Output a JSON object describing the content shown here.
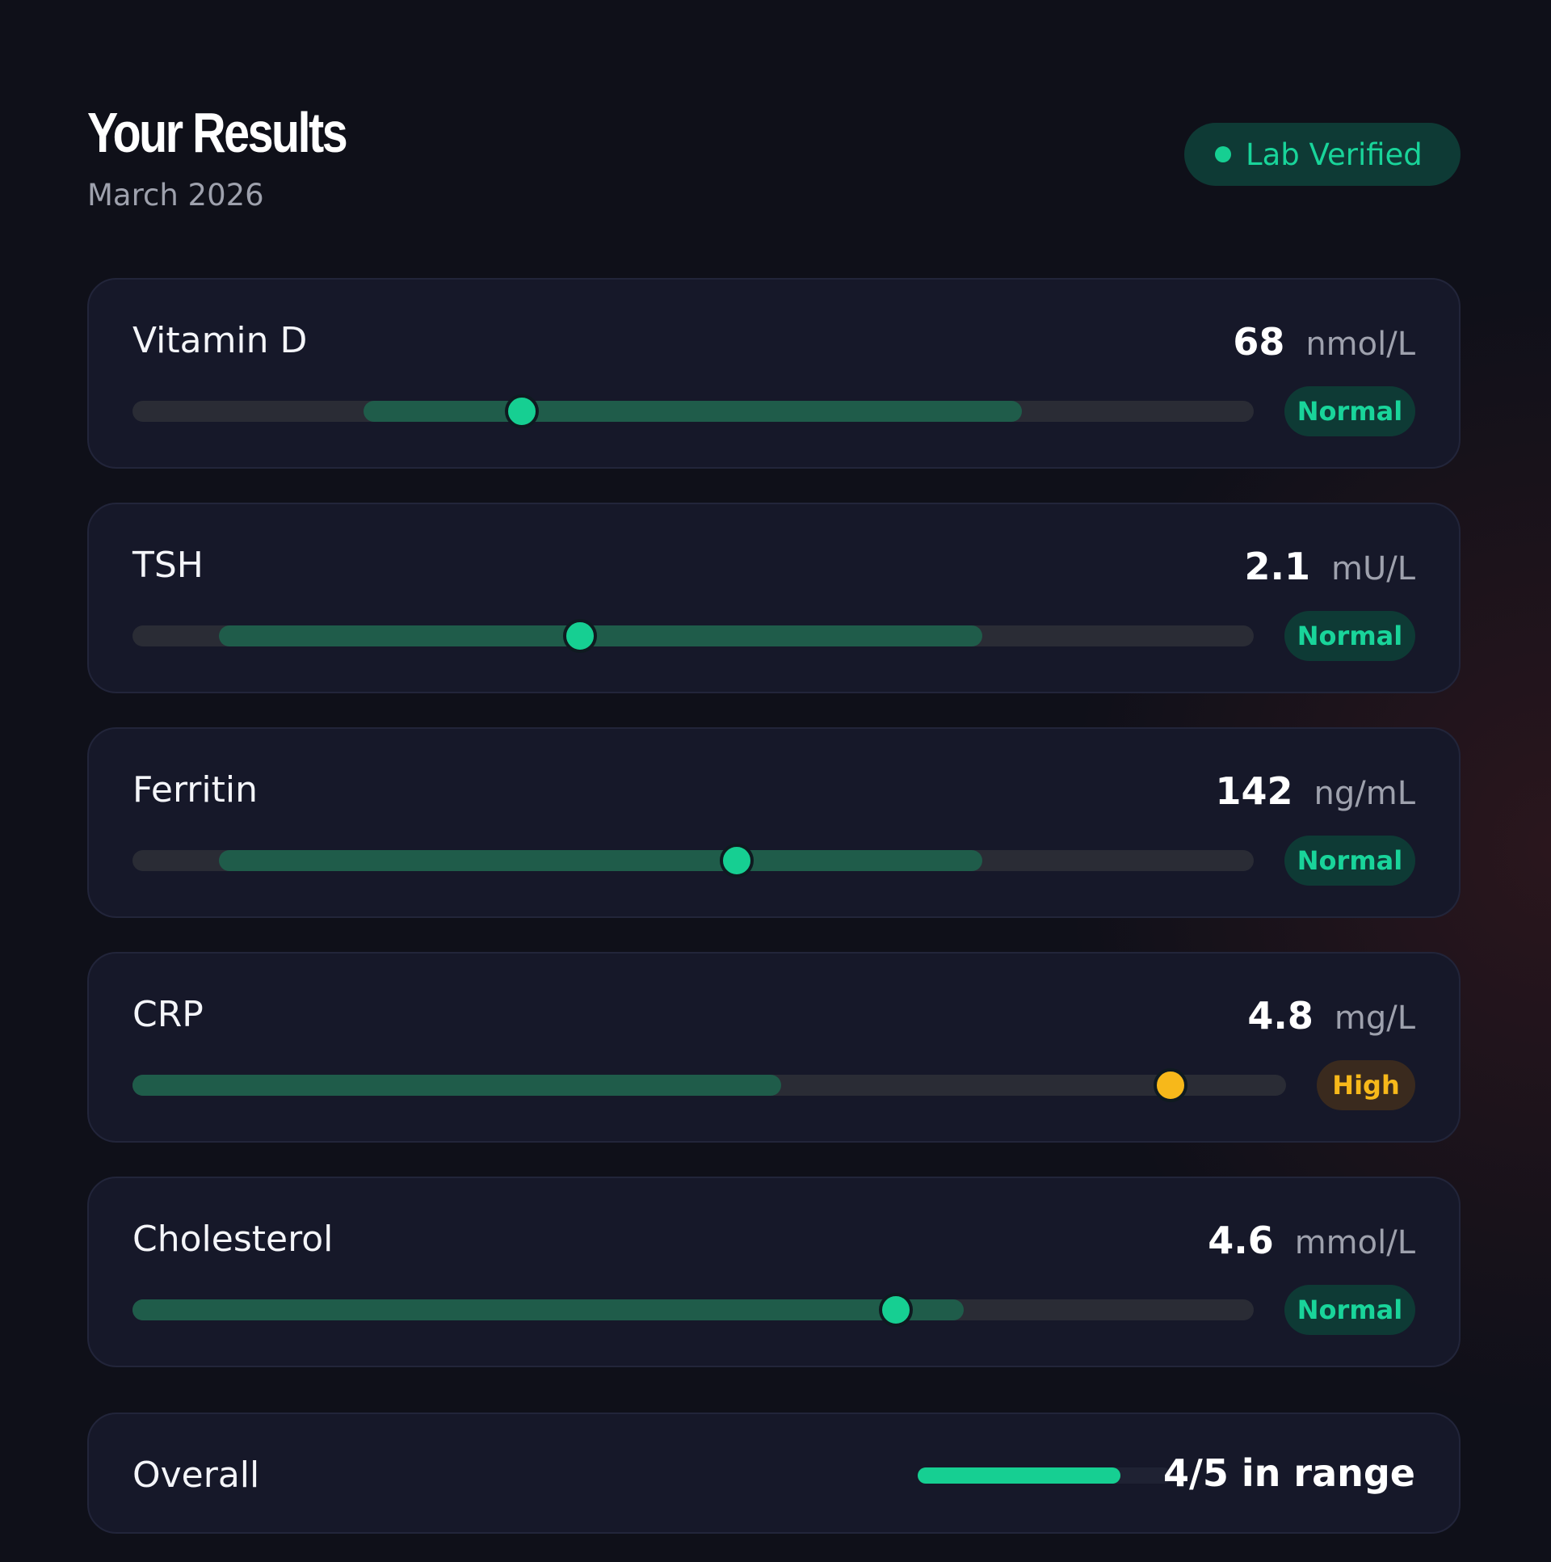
{
  "header": {
    "title": "Your Results",
    "subtitle": "March 2026",
    "verified_label": "Lab Verified",
    "verified_icon": "status-dot-icon"
  },
  "colors": {
    "background": "#0f1019",
    "card": "#161829",
    "track": "#2a2c35",
    "range": "#1f5c4a",
    "normal": "#16cf92",
    "high": "#f7b81a"
  },
  "results": [
    {
      "name": "Vitamin D",
      "value": "68",
      "unit": "nmol/L",
      "status": "Normal",
      "range_low": 0.206,
      "range_high": 0.793,
      "marker": 0.347
    },
    {
      "name": "TSH",
      "value": "2.1",
      "unit": "mU/L",
      "status": "Normal",
      "range_low": 0.077,
      "range_high": 0.758,
      "marker": 0.399
    },
    {
      "name": "Ferritin",
      "value": "142",
      "unit": "ng/mL",
      "status": "Normal",
      "range_low": 0.077,
      "range_high": 0.758,
      "marker": 0.539
    },
    {
      "name": "CRP",
      "value": "4.8",
      "unit": "mg/L",
      "status": "High",
      "range_low": 0.0,
      "range_high": 0.562,
      "marker": 0.9
    },
    {
      "name": "Cholesterol",
      "value": "4.6",
      "unit": "mmol/L",
      "status": "Normal",
      "range_low": 0.0,
      "range_high": 0.741,
      "marker": 0.681
    }
  ],
  "overall": {
    "label": "Overall",
    "summary": "4/5 in range",
    "fraction": 0.8
  }
}
